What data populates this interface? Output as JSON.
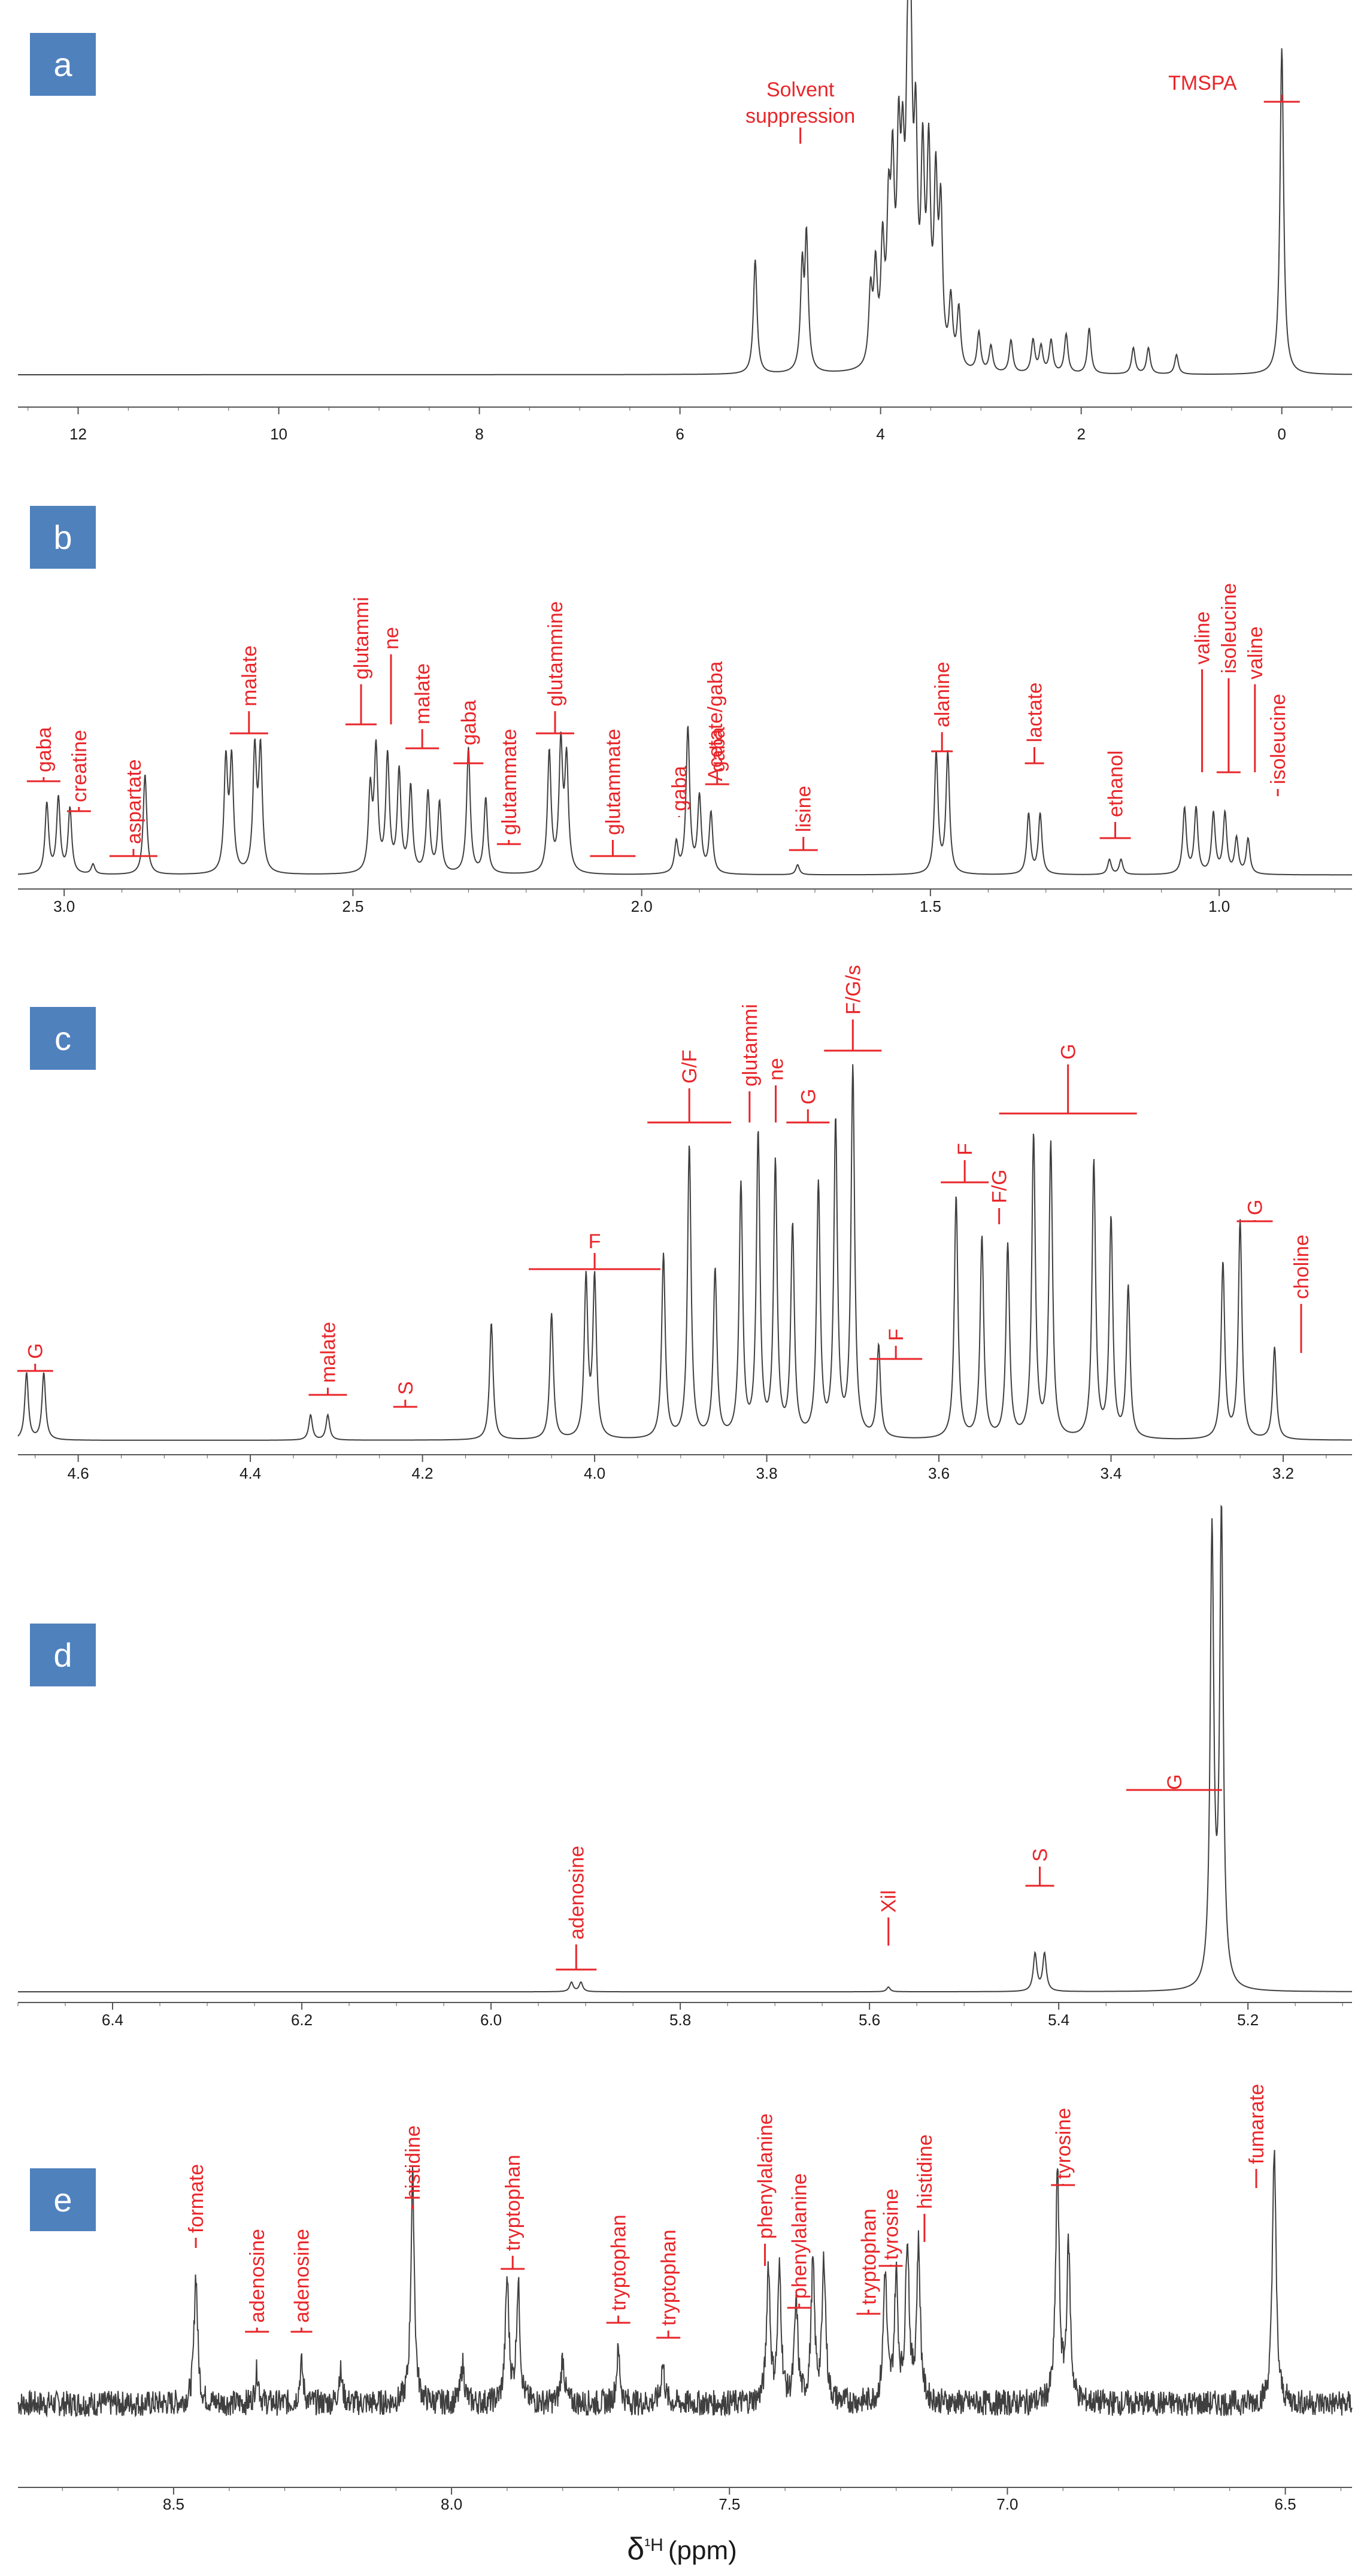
{
  "colors": {
    "spectrum": "#3f3f3f",
    "annotation": "#e8262a",
    "label_box": "#4f81bd",
    "axis": "#555555"
  },
  "axis_title": {
    "symbol": "δ",
    "nucleus": "¹H",
    "unit": "(ppm)"
  },
  "chart_data": [
    {
      "panel": "a",
      "type": "line",
      "xlim": [
        12.6,
        -0.7
      ],
      "ticks": [
        12,
        10,
        8,
        6,
        4,
        2,
        0
      ],
      "tick_labels": [
        "12",
        "10",
        "8",
        "6",
        "4",
        "2",
        "0"
      ],
      "baseline": 0.0,
      "ymax": 100,
      "peaks": [
        {
          "ppm": 5.25,
          "h": 35
        },
        {
          "ppm": 4.78,
          "h": 46
        },
        {
          "ppm": 4.74,
          "h": 44
        },
        {
          "ppm": 4.1,
          "h": 22
        },
        {
          "ppm": 4.05,
          "h": 28
        },
        {
          "ppm": 3.98,
          "h": 34
        },
        {
          "ppm": 3.92,
          "h": 40
        },
        {
          "ppm": 3.88,
          "h": 52
        },
        {
          "ppm": 3.82,
          "h": 58
        },
        {
          "ppm": 3.78,
          "h": 48
        },
        {
          "ppm": 3.73,
          "h": 70
        },
        {
          "ppm": 3.7,
          "h": 80
        },
        {
          "ppm": 3.65,
          "h": 62
        },
        {
          "ppm": 3.58,
          "h": 58
        },
        {
          "ppm": 3.52,
          "h": 60
        },
        {
          "ppm": 3.45,
          "h": 52
        },
        {
          "ppm": 3.4,
          "h": 45
        },
        {
          "ppm": 3.3,
          "h": 20
        },
        {
          "ppm": 3.22,
          "h": 18
        },
        {
          "ppm": 3.02,
          "h": 12
        },
        {
          "ppm": 2.9,
          "h": 8
        },
        {
          "ppm": 2.7,
          "h": 10
        },
        {
          "ppm": 2.48,
          "h": 10
        },
        {
          "ppm": 2.4,
          "h": 8
        },
        {
          "ppm": 2.3,
          "h": 10
        },
        {
          "ppm": 2.15,
          "h": 12
        },
        {
          "ppm": 1.92,
          "h": 14
        },
        {
          "ppm": 1.48,
          "h": 8
        },
        {
          "ppm": 1.33,
          "h": 8
        },
        {
          "ppm": 1.05,
          "h": 6
        },
        {
          "ppm": 0.0,
          "h": 100
        }
      ],
      "dips": [
        {
          "ppm": 4.78,
          "d": 12
        },
        {
          "ppm": 4.76,
          "d": 12
        }
      ],
      "annotations": [
        {
          "text": "Solvent suppression",
          "ppm": 4.8,
          "lines": [
            "Solvent",
            "suppression"
          ]
        },
        {
          "text": "TMSPA",
          "ppm": 0.0
        }
      ]
    },
    {
      "panel": "b",
      "type": "line",
      "xlim": [
        3.08,
        0.77
      ],
      "ticks": [
        3.0,
        2.5,
        2.0,
        1.5,
        1.0
      ],
      "tick_labels": [
        "3.0",
        "2.5",
        "2.0",
        "1.5",
        "1.0"
      ],
      "baseline": 2,
      "ymax": 100,
      "peaks": [
        {
          "ppm": 3.03,
          "h": 28
        },
        {
          "ppm": 3.01,
          "h": 30
        },
        {
          "ppm": 2.99,
          "h": 26
        },
        {
          "ppm": 2.95,
          "h": 4
        },
        {
          "ppm": 2.86,
          "h": 40
        },
        {
          "ppm": 2.72,
          "h": 44
        },
        {
          "ppm": 2.71,
          "h": 44
        },
        {
          "ppm": 2.67,
          "h": 48
        },
        {
          "ppm": 2.66,
          "h": 48
        },
        {
          "ppm": 2.47,
          "h": 32
        },
        {
          "ppm": 2.46,
          "h": 48
        },
        {
          "ppm": 2.44,
          "h": 46
        },
        {
          "ppm": 2.42,
          "h": 40
        },
        {
          "ppm": 2.4,
          "h": 34
        },
        {
          "ppm": 2.37,
          "h": 32
        },
        {
          "ppm": 2.35,
          "h": 28
        },
        {
          "ppm": 2.3,
          "h": 50
        },
        {
          "ppm": 2.27,
          "h": 30
        },
        {
          "ppm": 2.16,
          "h": 48
        },
        {
          "ppm": 2.14,
          "h": 50
        },
        {
          "ppm": 2.13,
          "h": 44
        },
        {
          "ppm": 1.94,
          "h": 12
        },
        {
          "ppm": 1.92,
          "h": 58
        },
        {
          "ppm": 1.9,
          "h": 30
        },
        {
          "ppm": 1.88,
          "h": 24
        },
        {
          "ppm": 1.73,
          "h": 4
        },
        {
          "ppm": 1.49,
          "h": 48
        },
        {
          "ppm": 1.47,
          "h": 48
        },
        {
          "ppm": 1.33,
          "h": 24
        },
        {
          "ppm": 1.31,
          "h": 24
        },
        {
          "ppm": 1.19,
          "h": 6
        },
        {
          "ppm": 1.17,
          "h": 6
        },
        {
          "ppm": 1.06,
          "h": 26
        },
        {
          "ppm": 1.04,
          "h": 26
        },
        {
          "ppm": 1.01,
          "h": 24
        },
        {
          "ppm": 0.99,
          "h": 24
        },
        {
          "ppm": 0.97,
          "h": 14
        },
        {
          "ppm": 0.95,
          "h": 14
        }
      ],
      "annotations": [
        {
          "text": "gaba",
          "ppm": 3.02
        },
        {
          "text": "creatine",
          "ppm": 2.99
        },
        {
          "text": "aspartate",
          "ppm": 2.88
        },
        {
          "text": "malate",
          "ppm": 2.68
        },
        {
          "text": "glutammi",
          "ppm": 2.46
        },
        {
          "text": "ne",
          "ppm": 2.46
        },
        {
          "text": "malate",
          "ppm": 2.38
        },
        {
          "text": "gaba",
          "ppm": 2.3
        },
        {
          "text": "glutammate",
          "ppm": 2.23
        },
        {
          "text": "glutammine",
          "ppm": 2.15
        },
        {
          "text": "glutammate",
          "ppm": 2.05
        },
        {
          "text": "gaba",
          "ppm": 1.93
        },
        {
          "text": "gaba",
          "ppm": 1.89
        },
        {
          "text": "Acetate/gaba",
          "ppm": 1.92
        },
        {
          "text": "lisine",
          "ppm": 1.72
        },
        {
          "text": "alanine",
          "ppm": 1.48
        },
        {
          "text": "lactate",
          "ppm": 1.32
        },
        {
          "text": "ethanol",
          "ppm": 1.18
        },
        {
          "text": "valine",
          "ppm": 1.04
        },
        {
          "text": "isoleucine",
          "ppm": 1.02
        },
        {
          "text": "valine",
          "ppm": 0.99
        },
        {
          "text": "isoleucine",
          "ppm": 0.94
        }
      ]
    },
    {
      "panel": "c",
      "type": "line",
      "xlim": [
        4.67,
        3.12
      ],
      "ticks": [
        4.6,
        4.4,
        4.2,
        4.0,
        3.8,
        3.6,
        3.4,
        3.2
      ],
      "tick_labels": [
        "4.6",
        "4.4",
        "4.2",
        "4.0",
        "3.8",
        "3.6",
        "3.4",
        "3.2"
      ],
      "baseline": 2,
      "ymax": 100,
      "peaks": [
        {
          "ppm": 4.66,
          "h": 16
        },
        {
          "ppm": 4.64,
          "h": 16
        },
        {
          "ppm": 4.33,
          "h": 6
        },
        {
          "ppm": 4.31,
          "h": 6
        },
        {
          "ppm": 4.12,
          "h": 28
        },
        {
          "ppm": 4.05,
          "h": 30
        },
        {
          "ppm": 4.01,
          "h": 38
        },
        {
          "ppm": 4.0,
          "h": 38
        },
        {
          "ppm": 3.92,
          "h": 44
        },
        {
          "ppm": 3.89,
          "h": 70
        },
        {
          "ppm": 3.86,
          "h": 40
        },
        {
          "ppm": 3.83,
          "h": 60
        },
        {
          "ppm": 3.81,
          "h": 72
        },
        {
          "ppm": 3.79,
          "h": 65
        },
        {
          "ppm": 3.77,
          "h": 50
        },
        {
          "ppm": 3.74,
          "h": 60
        },
        {
          "ppm": 3.72,
          "h": 75
        },
        {
          "ppm": 3.7,
          "h": 88
        },
        {
          "ppm": 3.67,
          "h": 22
        },
        {
          "ppm": 3.58,
          "h": 58
        },
        {
          "ppm": 3.55,
          "h": 48
        },
        {
          "ppm": 3.52,
          "h": 46
        },
        {
          "ppm": 3.49,
          "h": 72
        },
        {
          "ppm": 3.47,
          "h": 70
        },
        {
          "ppm": 3.42,
          "h": 66
        },
        {
          "ppm": 3.4,
          "h": 52
        },
        {
          "ppm": 3.38,
          "h": 36
        },
        {
          "ppm": 3.27,
          "h": 42
        },
        {
          "ppm": 3.25,
          "h": 52
        },
        {
          "ppm": 3.21,
          "h": 22
        }
      ],
      "annotations": [
        {
          "text": "G",
          "ppm": 4.65
        },
        {
          "text": "malate",
          "ppm": 4.31
        },
        {
          "text": "S",
          "ppm": 4.22
        },
        {
          "text": "F",
          "ppm": 4.0
        },
        {
          "text": "G/F",
          "ppm": 3.89
        },
        {
          "text": "glutammi",
          "ppm": 3.82
        },
        {
          "text": "ne",
          "ppm": 3.8
        },
        {
          "text": "G",
          "ppm": 3.78
        },
        {
          "text": "F/G/s",
          "ppm": 3.7
        },
        {
          "text": "F",
          "ppm": 3.65
        },
        {
          "text": "F",
          "ppm": 3.57
        },
        {
          "text": "F/G",
          "ppm": 3.53
        },
        {
          "text": "G",
          "ppm": 3.45
        },
        {
          "text": "G",
          "ppm": 3.24
        },
        {
          "text": "choline",
          "ppm": 3.2
        }
      ]
    },
    {
      "panel": "d",
      "type": "line",
      "xlim": [
        6.5,
        5.09
      ],
      "ticks": [
        6.4,
        6.2,
        6.0,
        5.8,
        5.6,
        5.4,
        5.2
      ],
      "tick_labels": [
        "6.4",
        "6.2",
        "6.0",
        "5.8",
        "5.6",
        "5.4",
        "5.2"
      ],
      "baseline": 1,
      "ymax": 100,
      "peaks": [
        {
          "ppm": 5.915,
          "h": 2
        },
        {
          "ppm": 5.905,
          "h": 2
        },
        {
          "ppm": 5.58,
          "h": 1
        },
        {
          "ppm": 5.425,
          "h": 8
        },
        {
          "ppm": 5.415,
          "h": 8
        },
        {
          "ppm": 5.238,
          "h": 96
        },
        {
          "ppm": 5.228,
          "h": 100
        }
      ],
      "annotations": [
        {
          "text": "adenosine",
          "ppm": 5.91
        },
        {
          "text": "Xil",
          "ppm": 5.58
        },
        {
          "text": "S",
          "ppm": 5.42
        },
        {
          "text": "G",
          "ppm": 5.24
        }
      ]
    },
    {
      "panel": "e",
      "type": "line",
      "xlim": [
        8.78,
        6.38
      ],
      "ticks": [
        8.5,
        8.0,
        7.5,
        7.0,
        6.5
      ],
      "tick_labels": [
        "8.5",
        "8.0",
        "7.5",
        "7.0",
        "6.5"
      ],
      "baseline": 12,
      "ymax": 100,
      "noise": 4,
      "peaks": [
        {
          "ppm": 8.46,
          "h": 40
        },
        {
          "ppm": 8.35,
          "h": 10
        },
        {
          "ppm": 8.27,
          "h": 12
        },
        {
          "ppm": 8.2,
          "h": 10
        },
        {
          "ppm": 8.07,
          "h": 70
        },
        {
          "ppm": 7.98,
          "h": 12
        },
        {
          "ppm": 7.9,
          "h": 38
        },
        {
          "ppm": 7.88,
          "h": 36
        },
        {
          "ppm": 7.8,
          "h": 14
        },
        {
          "ppm": 7.7,
          "h": 16
        },
        {
          "ppm": 7.62,
          "h": 12
        },
        {
          "ppm": 7.43,
          "h": 42
        },
        {
          "ppm": 7.41,
          "h": 40
        },
        {
          "ppm": 7.38,
          "h": 30
        },
        {
          "ppm": 7.35,
          "h": 42
        },
        {
          "ppm": 7.33,
          "h": 44
        },
        {
          "ppm": 7.22,
          "h": 40
        },
        {
          "ppm": 7.2,
          "h": 38
        },
        {
          "ppm": 7.18,
          "h": 50
        },
        {
          "ppm": 7.16,
          "h": 48
        },
        {
          "ppm": 6.91,
          "h": 72
        },
        {
          "ppm": 6.89,
          "h": 48
        },
        {
          "ppm": 6.52,
          "h": 80
        }
      ],
      "annotations": [
        {
          "text": "formate",
          "ppm": 8.46
        },
        {
          "text": "adenosine",
          "ppm": 8.35
        },
        {
          "text": "adenosine",
          "ppm": 8.27
        },
        {
          "text": "histidine",
          "ppm": 8.07
        },
        {
          "text": "tryptophan",
          "ppm": 7.89
        },
        {
          "text": "tryptophan",
          "ppm": 7.7
        },
        {
          "text": "tryptophan",
          "ppm": 7.61
        },
        {
          "text": "phenylalanine",
          "ppm": 7.42
        },
        {
          "text": "phenylalanine",
          "ppm": 7.38
        },
        {
          "text": "tryptophan",
          "ppm": 7.25
        },
        {
          "text": "tyrosine",
          "ppm": 7.21
        },
        {
          "text": "histidine",
          "ppm": 7.16
        },
        {
          "text": "tyrosine",
          "ppm": 6.9
        },
        {
          "text": "fumarate",
          "ppm": 6.52
        }
      ]
    }
  ]
}
